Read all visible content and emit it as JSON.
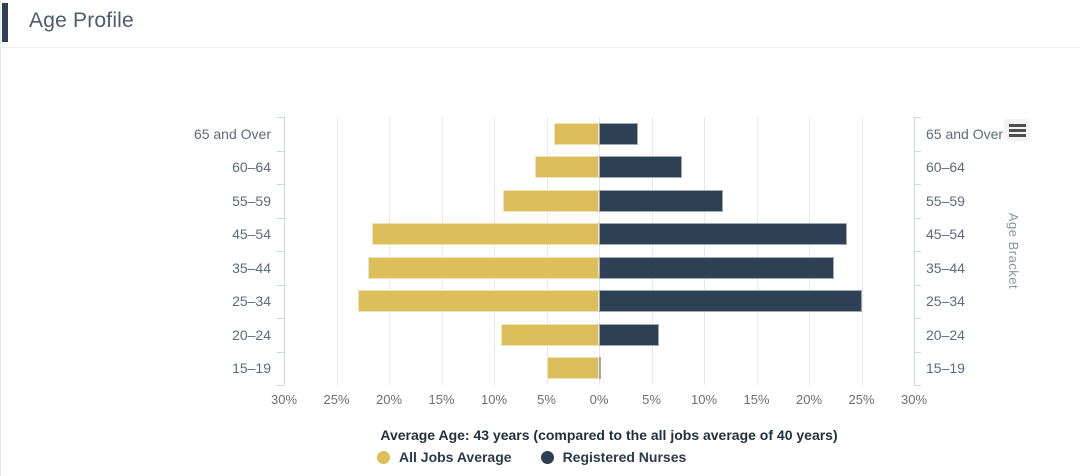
{
  "header": {
    "title": "Age Profile"
  },
  "menu": {
    "icon": "hamburger-menu-icon"
  },
  "chart_data": {
    "type": "bar",
    "subtype": "population-pyramid-horizontal",
    "title": "Age Profile",
    "categories": [
      "65 and Over",
      "60–64",
      "55–59",
      "45–54",
      "35–44",
      "25–34",
      "20–24",
      "15–19"
    ],
    "series": [
      {
        "name": "All Jobs Average",
        "side": "left",
        "color": "#dcbe5a",
        "values": [
          4.3,
          6.1,
          9.1,
          21.6,
          22.0,
          23.0,
          9.3,
          5.0
        ]
      },
      {
        "name": "Registered Nurses",
        "side": "right",
        "color": "#2e4053",
        "values": [
          3.7,
          7.9,
          11.8,
          23.6,
          22.4,
          25.0,
          5.7,
          0.2
        ]
      }
    ],
    "x_tick_labels": [
      "30%",
      "25%",
      "20%",
      "15%",
      "10%",
      "5%",
      "0%",
      "5%",
      "10%",
      "15%",
      "20%",
      "25%",
      "30%"
    ],
    "x_axis_max_pct": 30,
    "x_tick_step_pct": 5,
    "y_axis_label_right": "Age Bracket",
    "category_labels_both_sides": true,
    "grid": true,
    "caption": "Average Age: 43 years (compared to the all jobs average of 40 years)",
    "legend_position": "bottom",
    "colors": {
      "all_jobs_average": "#dcbe5a",
      "registered_nurses": "#2e4053",
      "gridline": "#e8e8ed",
      "axis_line": "#ccd6e4",
      "header_accent": "#2e4053"
    }
  }
}
